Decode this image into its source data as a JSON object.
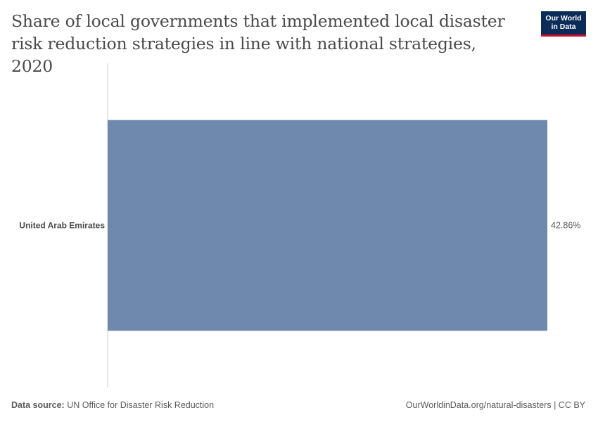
{
  "title": "Share of local governments that implemented local disaster risk reduction strategies in line with national strategies, 2020",
  "logo": {
    "line1": "Our World",
    "line2": "in Data"
  },
  "chart_data": {
    "type": "bar",
    "orientation": "horizontal",
    "categories": [
      "United Arab Emirates"
    ],
    "values": [
      42.86
    ],
    "value_labels": [
      "42.86%"
    ],
    "unit": "%",
    "xlim": [
      0,
      42.86
    ],
    "color": "#6f88ad",
    "grid": false
  },
  "footer": {
    "source_label": "Data source:",
    "source_text": "UN Office for Disaster Risk Reduction",
    "right_text": "OurWorldinData.org/natural-disasters | CC BY"
  },
  "colors": {
    "bar": "#6f88ad",
    "axis": "#cccccc",
    "logo_bg": "#0c2c58",
    "logo_accent": "#c8102e"
  }
}
